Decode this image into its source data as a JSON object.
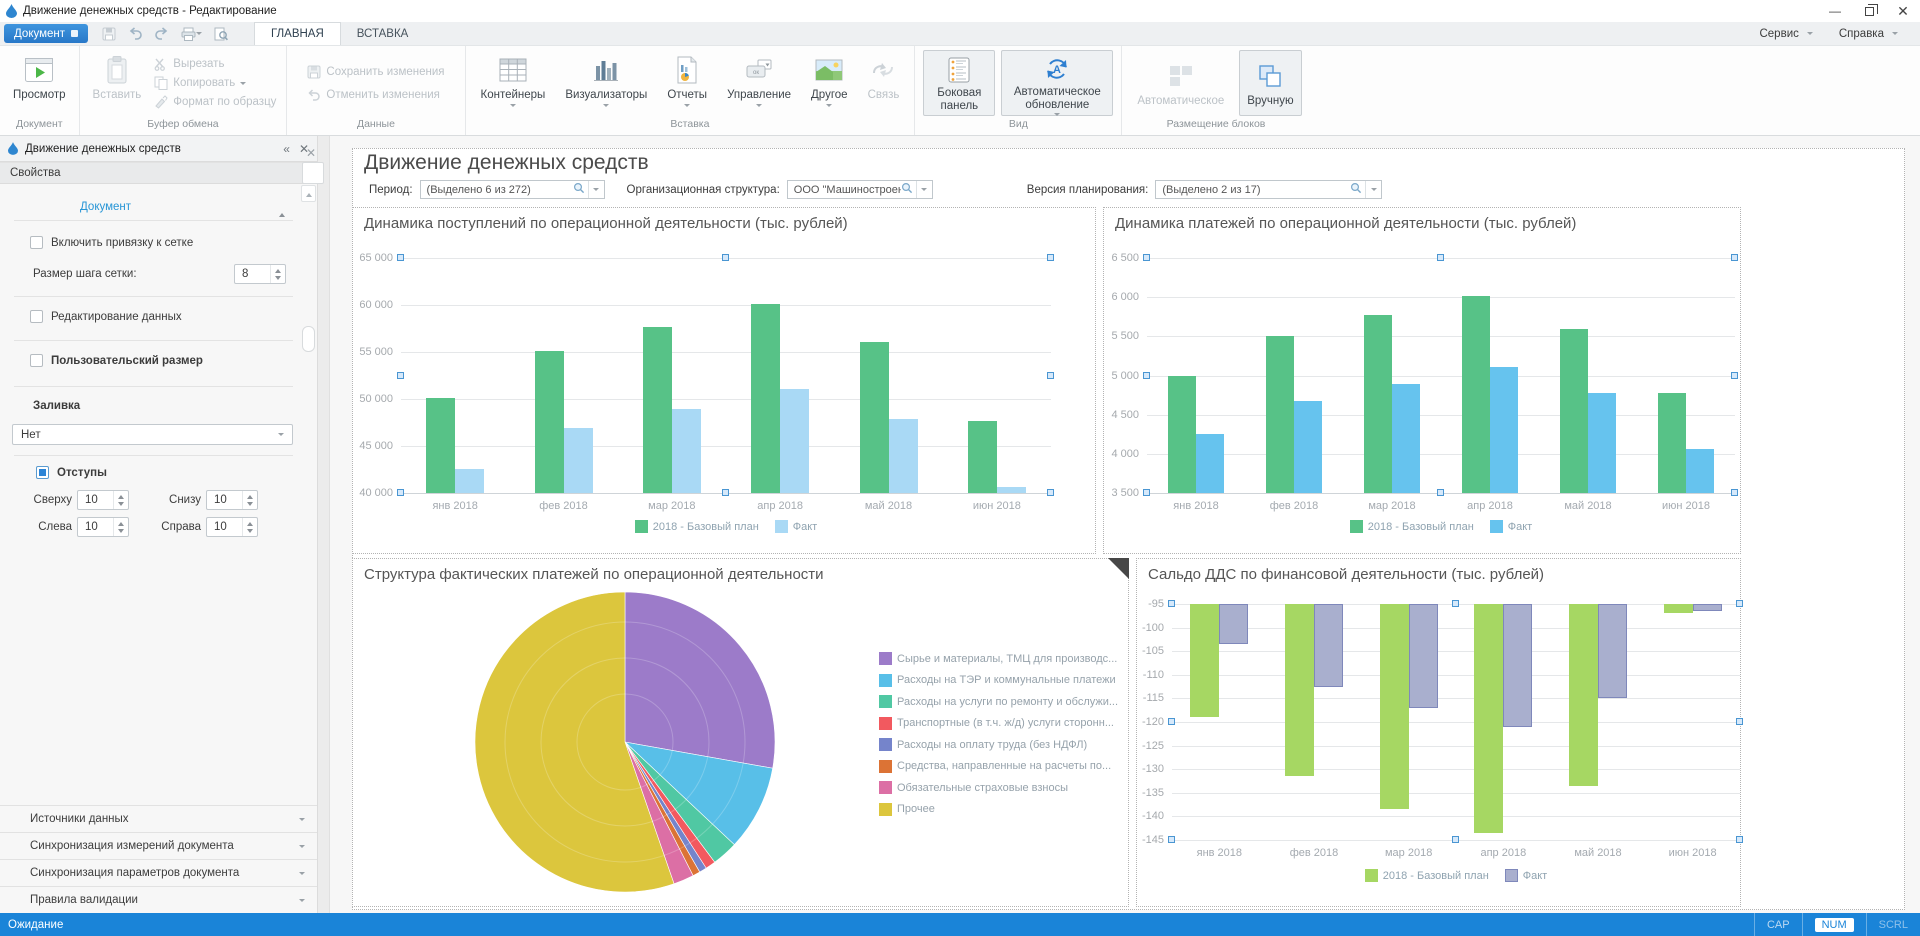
{
  "titlebar": {
    "title": "Движение денежных средств - Редактирование"
  },
  "menubar": {
    "document_button": "Документ",
    "tabs": [
      {
        "label": "ГЛАВНАЯ"
      },
      {
        "label": "ВСТАВКА"
      }
    ],
    "right": [
      {
        "label": "Сервис"
      },
      {
        "label": "Справка"
      }
    ]
  },
  "ribbon": {
    "groups": [
      {
        "label": "Документ",
        "buttons": {
          "preview": "Просмотр"
        }
      },
      {
        "label": "Буфер обмена",
        "buttons": {
          "paste": "Вставить",
          "cut": "Вырезать",
          "copy": "Копировать",
          "format_painter": "Формат по образцу"
        }
      },
      {
        "label": "Данные",
        "buttons": {
          "save_changes": "Сохранить изменения",
          "cancel_changes": "Отменить изменения"
        }
      },
      {
        "label": "Вставка",
        "buttons": {
          "containers": "Контейнеры",
          "visualizers": "Визуализаторы",
          "reports": "Отчеты",
          "controls": "Управление",
          "other": "Другое",
          "link": "Связь"
        }
      },
      {
        "label": "Вид",
        "buttons": {
          "side_panel": "Боковая панель",
          "auto_refresh": "Автоматическое обновление"
        }
      },
      {
        "label": "Размещение блоков",
        "buttons": {
          "auto_layout": "Автоматическое",
          "manual_layout": "Вручную"
        }
      }
    ]
  },
  "sidebar": {
    "header": "Движение денежных средств",
    "properties_title": "Свойства",
    "section_document": "Документ",
    "snap_to_grid": "Включить привязку к сетке",
    "grid_step_label": "Размер шага сетки:",
    "grid_step_value": "8",
    "data_editing": "Редактирование данных",
    "custom_size": "Пользовательский размер",
    "fill_label": "Заливка",
    "fill_value": "Нет",
    "margins_label": "Отступы",
    "margin_top_label": "Сверху",
    "margin_top": "10",
    "margin_bottom_label": "Снизу",
    "margin_bottom": "10",
    "margin_left_label": "Слева",
    "margin_left": "10",
    "margin_right_label": "Справа",
    "margin_right": "10",
    "sections": {
      "s0": "Источники данных",
      "s1": "Синхронизация измерений документа",
      "s2": "Синхронизация параметров документа",
      "s3": "Правила валидации"
    }
  },
  "page": {
    "title": "Движение денежных средств",
    "filters": [
      {
        "label": "Период:",
        "value": "(Выделено 6 из 272)"
      },
      {
        "label": "Организационная структура:",
        "value": "ООО \"Машиностроение-1\""
      },
      {
        "label": "Версия планирования:",
        "value": "(Выделено 2 из 17)"
      }
    ]
  },
  "statusbar": {
    "status": "Ожидание",
    "cap": "CAP",
    "num": "NUM",
    "scrl": "SCRL"
  },
  "colors": {
    "accent": "#2b84d6",
    "plan_green": "#57c287",
    "fact_blue_light": "#a9d9f5",
    "fact_blue": "#66c3ee",
    "saldo_green": "#a6d763",
    "saldo_fact_fill": "#a9afce",
    "saldo_fact_border": "#7f88bb"
  },
  "chart_data": [
    {
      "id": "receipts",
      "type": "bar",
      "title": "Динамика поступлений по операционной деятельности (тыс. рублей)",
      "categories": [
        "янв 2018",
        "фев 2018",
        "мар 2018",
        "апр 2018",
        "май 2018",
        "июн 2018"
      ],
      "series": [
        {
          "name": "2018 - Базовый план",
          "color": "#57c287",
          "values": [
            50100,
            55100,
            57700,
            60100,
            56100,
            47700
          ]
        },
        {
          "name": "Факт",
          "color": "#a9d9f5",
          "values": [
            42600,
            46900,
            48900,
            51100,
            47900,
            40600
          ]
        }
      ],
      "ylim": [
        40000,
        65000
      ],
      "ystep": 5000,
      "grid": true,
      "legend_position": "bottom",
      "selected": true
    },
    {
      "id": "payments",
      "type": "bar",
      "title": "Динамика платежей по операционной деятельности (тыс. рублей)",
      "categories": [
        "янв 2018",
        "фев 2018",
        "мар 2018",
        "апр 2018",
        "май 2018",
        "июн 2018"
      ],
      "series": [
        {
          "name": "2018 - Базовый план",
          "color": "#57c287",
          "values": [
            5000,
            5510,
            5770,
            6010,
            5600,
            4780
          ]
        },
        {
          "name": "Факт",
          "color": "#66c3ee",
          "values": [
            4250,
            4670,
            4890,
            5110,
            4780,
            4060
          ]
        }
      ],
      "ylim": [
        3500,
        6500
      ],
      "ystep": 500,
      "grid": true,
      "legend_position": "bottom",
      "selected": true
    },
    {
      "id": "structure",
      "type": "pie",
      "title": "Структура фактических платежей по операционной деятельности",
      "units": "percent",
      "legend_position": "right",
      "corner_marker": true,
      "slices": [
        {
          "label": "Сырье и материалы, ТМЦ для производс...",
          "color": "#9c7bc9",
          "value": 27.8
        },
        {
          "label": "Расходы на ТЭР и коммунальные платежи",
          "color": "#58bfe8",
          "value": 9.2
        },
        {
          "label": "Расходы на услуги по ремонту и обслужи...",
          "color": "#50c8a3",
          "value": 2.8
        },
        {
          "label": "Транспортные (в т.ч. ж/д) услуги сторонн...",
          "color": "#f2595f",
          "value": 1.1
        },
        {
          "label": "Расходы на оплату труда (без НДФЛ)",
          "color": "#7584cb",
          "value": 0.8
        },
        {
          "label": "Средства, направленные на расчеты по...",
          "color": "#dc7335",
          "value": 0.8
        },
        {
          "label": "Обязательные страховые взносы",
          "color": "#dc6fa5",
          "value": 2.2
        },
        {
          "label": "Прочее",
          "color": "#dcc63d",
          "value": 55.3
        }
      ]
    },
    {
      "id": "saldo",
      "type": "bar",
      "title": "Сальдо ДДС по финансовой деятельности (тыс. рублей)",
      "categories": [
        "янв 2018",
        "фев 2018",
        "мар 2018",
        "апр 2018",
        "май 2018",
        "июн 2018"
      ],
      "series": [
        {
          "name": "2018 - Базовый план",
          "color": "#a6d763",
          "values": [
            -119,
            -131.5,
            -138.5,
            -143.5,
            -133.5,
            -97
          ]
        },
        {
          "name": "Факт",
          "color": "#a9afce",
          "border": "#7f88bb",
          "values": [
            -103.5,
            -112.5,
            -117,
            -121,
            -115,
            -96.5
          ]
        }
      ],
      "ylim": [
        -145,
        -95
      ],
      "ystep": 5,
      "grid": true,
      "bar_base": "top",
      "legend_position": "bottom",
      "selected": true
    }
  ]
}
